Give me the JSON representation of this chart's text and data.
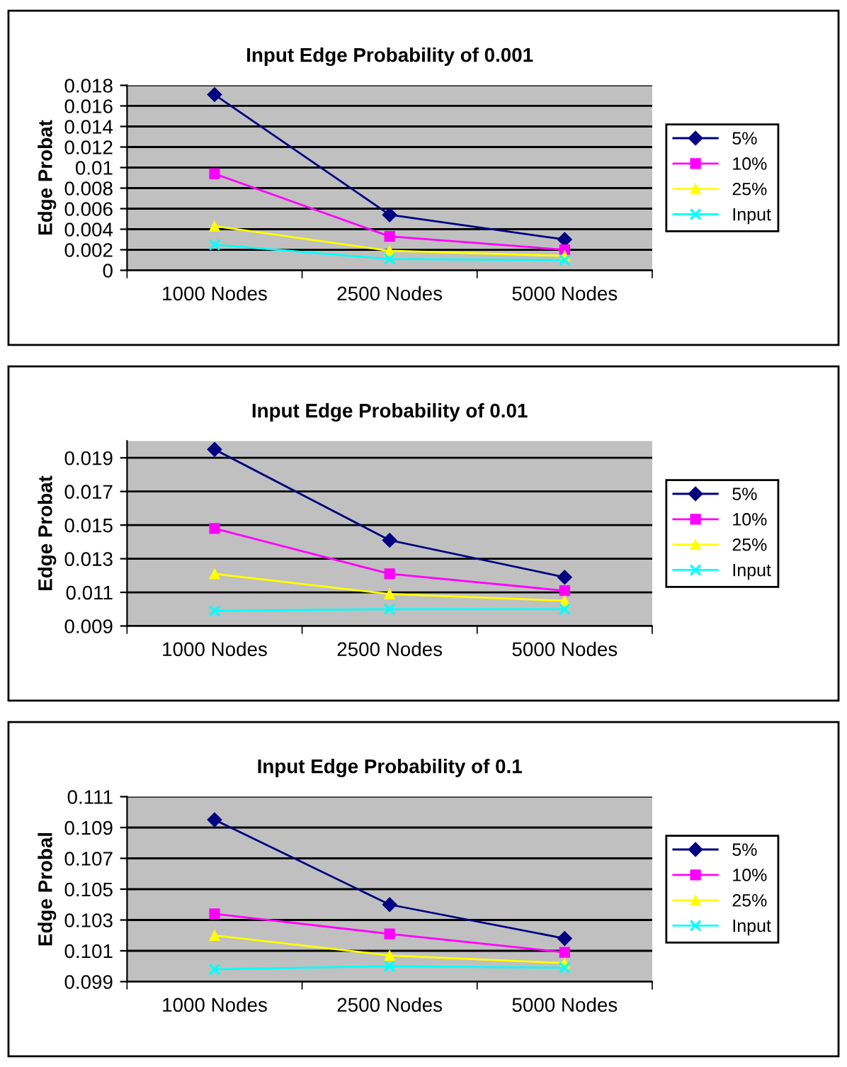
{
  "chart_data": [
    {
      "type": "line",
      "title": "Input Edge Probability of 0.001",
      "ylabel": "Edge Probat",
      "categories": [
        "1000 Nodes",
        "2500 Nodes",
        "5000 Nodes"
      ],
      "ylim": [
        0,
        0.018
      ],
      "yticks": [
        0,
        0.002,
        0.004,
        0.006,
        0.008,
        0.01,
        0.012,
        0.014,
        0.016,
        0.018
      ],
      "grid": "y",
      "legend": "right",
      "series": [
        {
          "name": "5%",
          "color": "#000080",
          "marker": "diamond",
          "values": [
            0.0171,
            0.0054,
            0.003
          ]
        },
        {
          "name": "10%",
          "color": "#ff00ff",
          "marker": "square",
          "values": [
            0.0094,
            0.0033,
            0.002
          ]
        },
        {
          "name": "25%",
          "color": "#ffff00",
          "marker": "triangle",
          "values": [
            0.0043,
            0.0019,
            0.0014
          ]
        },
        {
          "name": "Input",
          "color": "#00ffff",
          "marker": "cross",
          "values": [
            0.0025,
            0.0011,
            0.001
          ]
        }
      ]
    },
    {
      "type": "line",
      "title": "Input Edge Probability of 0.01",
      "ylabel": "Edge Probat",
      "categories": [
        "1000 Nodes",
        "2500 Nodes",
        "5000 Nodes"
      ],
      "ylim": [
        0.009,
        0.02
      ],
      "yticks": [
        0.009,
        0.011,
        0.013,
        0.015,
        0.017,
        0.019
      ],
      "grid": "y",
      "legend": "right",
      "series": [
        {
          "name": "5%",
          "color": "#000080",
          "marker": "diamond",
          "values": [
            0.0195,
            0.0141,
            0.0119
          ]
        },
        {
          "name": "10%",
          "color": "#ff00ff",
          "marker": "square",
          "values": [
            0.0148,
            0.0121,
            0.0111
          ]
        },
        {
          "name": "25%",
          "color": "#ffff00",
          "marker": "triangle",
          "values": [
            0.0121,
            0.0109,
            0.0105
          ]
        },
        {
          "name": "Input",
          "color": "#00ffff",
          "marker": "cross",
          "values": [
            0.0099,
            0.01,
            0.01
          ]
        }
      ]
    },
    {
      "type": "line",
      "title": "Input Edge Probability of 0.1",
      "ylabel": "Edge Probal",
      "categories": [
        "1000 Nodes",
        "2500 Nodes",
        "5000 Nodes"
      ],
      "ylim": [
        0.099,
        0.111
      ],
      "yticks": [
        0.099,
        0.101,
        0.103,
        0.105,
        0.107,
        0.109,
        0.111
      ],
      "grid": "y",
      "legend": "right",
      "series": [
        {
          "name": "5%",
          "color": "#000080",
          "marker": "diamond",
          "values": [
            0.1095,
            0.104,
            0.1018
          ]
        },
        {
          "name": "10%",
          "color": "#ff00ff",
          "marker": "square",
          "values": [
            0.1034,
            0.1021,
            0.1009
          ]
        },
        {
          "name": "25%",
          "color": "#ffff00",
          "marker": "triangle",
          "values": [
            0.102,
            0.1007,
            0.1002
          ]
        },
        {
          "name": "Input",
          "color": "#00ffff",
          "marker": "cross",
          "values": [
            0.0998,
            0.1,
            0.0999
          ]
        }
      ]
    }
  ]
}
